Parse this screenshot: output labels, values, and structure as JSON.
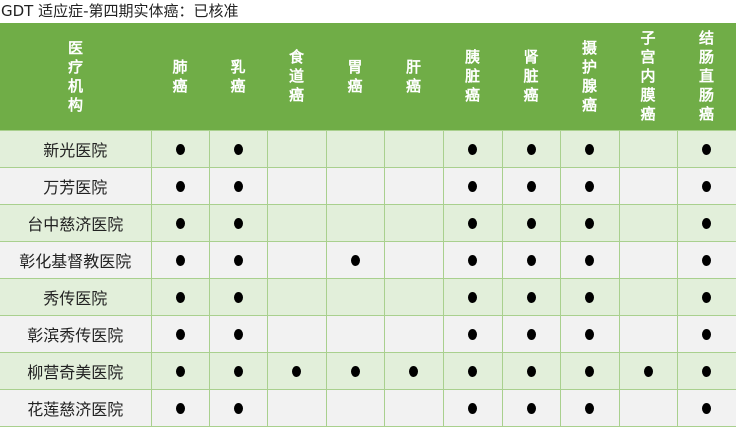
{
  "title": "GDT 适应症-第四期实体癌：已核准",
  "colors": {
    "header": "#70ad47",
    "row_odd": "#e2efda",
    "row_even": "#f2f2f2",
    "border": "#a9d08e"
  },
  "columns": [
    "医疗机构",
    "肺癌",
    "乳癌",
    "食道癌",
    "胃癌",
    "肝癌",
    "胰脏癌",
    "肾脏癌",
    "摄护腺癌",
    "子宫内膜癌",
    "结肠直肠癌"
  ],
  "rows": [
    {
      "name": "新光医院",
      "marks": [
        1,
        1,
        0,
        0,
        0,
        1,
        1,
        1,
        0,
        1
      ]
    },
    {
      "name": "万芳医院",
      "marks": [
        1,
        1,
        0,
        0,
        0,
        1,
        1,
        1,
        0,
        1
      ]
    },
    {
      "name": "台中慈济医院",
      "marks": [
        1,
        1,
        0,
        0,
        0,
        1,
        1,
        1,
        0,
        1
      ]
    },
    {
      "name": "彰化基督教医院",
      "marks": [
        1,
        1,
        0,
        1,
        0,
        1,
        1,
        1,
        0,
        1
      ]
    },
    {
      "name": "秀传医院",
      "marks": [
        1,
        1,
        0,
        0,
        0,
        1,
        1,
        1,
        0,
        1
      ]
    },
    {
      "name": "彰滨秀传医院",
      "marks": [
        1,
        1,
        0,
        0,
        0,
        1,
        1,
        1,
        0,
        1
      ]
    },
    {
      "name": "柳营奇美医院",
      "marks": [
        1,
        1,
        1,
        1,
        1,
        1,
        1,
        1,
        1,
        1
      ]
    },
    {
      "name": "花莲慈济医院",
      "marks": [
        1,
        1,
        0,
        0,
        0,
        1,
        1,
        1,
        0,
        1
      ]
    }
  ],
  "mark_icon": "filled-circle-icon"
}
